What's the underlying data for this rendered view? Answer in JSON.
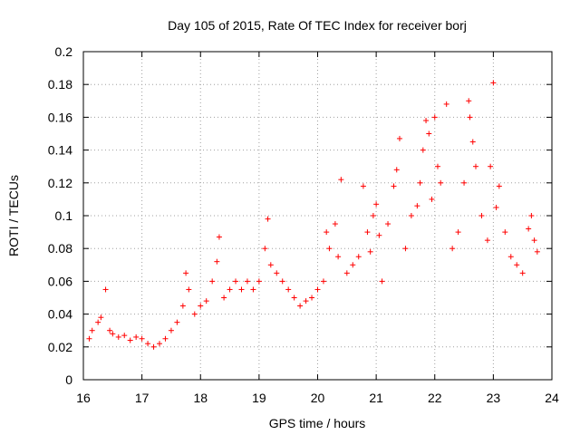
{
  "chart_data": {
    "type": "scatter",
    "title": "Day 105 of 2015, Rate Of TEC Index for receiver borj",
    "xlabel": "GPS time / hours",
    "ylabel": "ROTI / TECUs",
    "xlim": [
      16,
      24
    ],
    "ylim": [
      0,
      0.2
    ],
    "x_ticks": [
      "16",
      "17",
      "18",
      "19",
      "20",
      "21",
      "22",
      "23",
      "24"
    ],
    "y_ticks": [
      "0",
      "0.02",
      "0.04",
      "0.06",
      "0.08",
      "0.1",
      "0.12",
      "0.14",
      "0.16",
      "0.18",
      "0.2"
    ],
    "x_tick_values": [
      16,
      17,
      18,
      19,
      20,
      21,
      22,
      23,
      24
    ],
    "y_tick_values": [
      0,
      0.02,
      0.04,
      0.06,
      0.08,
      0.1,
      0.12,
      0.14,
      0.16,
      0.18,
      0.2
    ],
    "grid": true,
    "marker": "plus",
    "series": [
      {
        "name": "ROTI",
        "color": "#ff0000",
        "points": [
          [
            16.1,
            0.025
          ],
          [
            16.15,
            0.03
          ],
          [
            16.25,
            0.035
          ],
          [
            16.3,
            0.038
          ],
          [
            16.38,
            0.055
          ],
          [
            16.45,
            0.03
          ],
          [
            16.5,
            0.028
          ],
          [
            16.6,
            0.026
          ],
          [
            16.7,
            0.027
          ],
          [
            16.8,
            0.024
          ],
          [
            16.9,
            0.026
          ],
          [
            17.0,
            0.025
          ],
          [
            17.1,
            0.022
          ],
          [
            17.2,
            0.02
          ],
          [
            17.3,
            0.022
          ],
          [
            17.4,
            0.025
          ],
          [
            17.5,
            0.03
          ],
          [
            17.6,
            0.035
          ],
          [
            17.7,
            0.045
          ],
          [
            17.75,
            0.065
          ],
          [
            17.8,
            0.055
          ],
          [
            17.9,
            0.04
          ],
          [
            18.0,
            0.045
          ],
          [
            18.1,
            0.048
          ],
          [
            18.2,
            0.06
          ],
          [
            18.28,
            0.072
          ],
          [
            18.32,
            0.087
          ],
          [
            18.4,
            0.05
          ],
          [
            18.5,
            0.055
          ],
          [
            18.6,
            0.06
          ],
          [
            18.7,
            0.055
          ],
          [
            18.8,
            0.06
          ],
          [
            18.9,
            0.055
          ],
          [
            19.0,
            0.06
          ],
          [
            19.1,
            0.08
          ],
          [
            19.15,
            0.098
          ],
          [
            19.2,
            0.07
          ],
          [
            19.3,
            0.065
          ],
          [
            19.4,
            0.06
          ],
          [
            19.5,
            0.055
          ],
          [
            19.6,
            0.05
          ],
          [
            19.7,
            0.045
          ],
          [
            19.8,
            0.048
          ],
          [
            19.9,
            0.05
          ],
          [
            20.0,
            0.055
          ],
          [
            20.1,
            0.06
          ],
          [
            20.15,
            0.09
          ],
          [
            20.2,
            0.08
          ],
          [
            20.3,
            0.095
          ],
          [
            20.35,
            0.075
          ],
          [
            20.4,
            0.122
          ],
          [
            20.5,
            0.065
          ],
          [
            20.6,
            0.07
          ],
          [
            20.7,
            0.075
          ],
          [
            20.78,
            0.118
          ],
          [
            20.85,
            0.09
          ],
          [
            20.9,
            0.078
          ],
          [
            20.95,
            0.1
          ],
          [
            21.0,
            0.107
          ],
          [
            21.05,
            0.088
          ],
          [
            21.1,
            0.06
          ],
          [
            21.2,
            0.095
          ],
          [
            21.3,
            0.118
          ],
          [
            21.35,
            0.128
          ],
          [
            21.4,
            0.147
          ],
          [
            21.5,
            0.08
          ],
          [
            21.6,
            0.1
          ],
          [
            21.7,
            0.106
          ],
          [
            21.75,
            0.12
          ],
          [
            21.8,
            0.14
          ],
          [
            21.85,
            0.158
          ],
          [
            21.9,
            0.15
          ],
          [
            21.95,
            0.11
          ],
          [
            22.0,
            0.16
          ],
          [
            22.05,
            0.13
          ],
          [
            22.1,
            0.12
          ],
          [
            22.2,
            0.168
          ],
          [
            22.3,
            0.08
          ],
          [
            22.4,
            0.09
          ],
          [
            22.5,
            0.12
          ],
          [
            22.58,
            0.17
          ],
          [
            22.6,
            0.16
          ],
          [
            22.65,
            0.145
          ],
          [
            22.7,
            0.13
          ],
          [
            22.8,
            0.1
          ],
          [
            22.9,
            0.085
          ],
          [
            22.95,
            0.13
          ],
          [
            23.0,
            0.181
          ],
          [
            23.05,
            0.105
          ],
          [
            23.1,
            0.118
          ],
          [
            23.2,
            0.09
          ],
          [
            23.3,
            0.075
          ],
          [
            23.4,
            0.07
          ],
          [
            23.5,
            0.065
          ],
          [
            23.6,
            0.092
          ],
          [
            23.65,
            0.1
          ],
          [
            23.7,
            0.085
          ],
          [
            23.75,
            0.078
          ]
        ]
      }
    ]
  }
}
